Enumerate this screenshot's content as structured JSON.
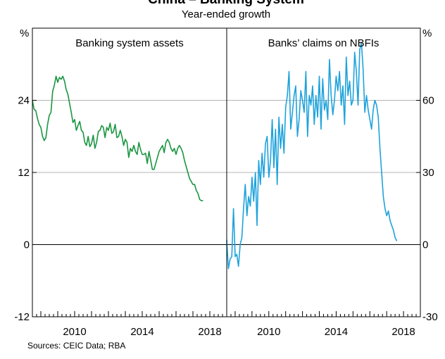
{
  "title": "China – Banking System",
  "subtitle": "Year-ended growth",
  "source": "Sources: CEIC Data; RBA",
  "colors": {
    "left_series": "#1a9641",
    "right_series": "#1fa2dc",
    "grid": "#b4b4b4",
    "axis": "#000000"
  },
  "chart_data": [
    {
      "type": "line",
      "panel": "left",
      "title": "Banking system assets",
      "ylabel": "%",
      "ylim": [
        -12,
        36
      ],
      "yticks": [
        "24",
        "12",
        "0",
        "-12"
      ],
      "ytick_values": [
        24,
        12,
        0,
        -12
      ],
      "xlim": [
        2007.5,
        2019.0
      ],
      "xticks": [
        "2010",
        "2014",
        "2018"
      ],
      "xtick_values": [
        2010,
        2014,
        2018
      ],
      "grid": true,
      "series": [
        {
          "x": [
            2007.5,
            2007.6,
            2007.7,
            2007.8,
            2007.9,
            2008.0,
            2008.1,
            2008.2,
            2008.3,
            2008.4,
            2008.5,
            2008.6,
            2008.7,
            2008.8,
            2008.9,
            2009.0,
            2009.1,
            2009.2,
            2009.3,
            2009.4,
            2009.5,
            2009.6,
            2009.7,
            2009.8,
            2009.9,
            2010.0,
            2010.1,
            2010.2,
            2010.3,
            2010.4,
            2010.5,
            2010.6,
            2010.7,
            2010.8,
            2010.9,
            2011.0,
            2011.1,
            2011.2,
            2011.3,
            2011.4,
            2011.5,
            2011.6,
            2011.7,
            2011.8,
            2011.9,
            2012.0,
            2012.1,
            2012.2,
            2012.3,
            2012.4,
            2012.5,
            2012.6,
            2012.7,
            2012.8,
            2012.9,
            2013.0,
            2013.1,
            2013.2,
            2013.3,
            2013.4,
            2013.5,
            2013.6,
            2013.7,
            2013.8,
            2013.9,
            2014.0,
            2014.1,
            2014.2,
            2014.3,
            2014.4,
            2014.5,
            2014.6,
            2014.7,
            2014.8,
            2014.9,
            2015.0,
            2015.1,
            2015.2,
            2015.3,
            2015.4,
            2015.5,
            2015.6,
            2015.7,
            2015.8,
            2015.9,
            2016.0,
            2016.1,
            2016.2,
            2016.3,
            2016.4,
            2016.5,
            2016.6,
            2016.7,
            2016.8,
            2016.9,
            2017.0,
            2017.1,
            2017.2,
            2017.3,
            2017.4,
            2017.5,
            2017.6
          ],
          "values": [
            24.0,
            22.5,
            22.3,
            21.0,
            20.0,
            19.5,
            18.0,
            17.3,
            17.8,
            20.0,
            21.5,
            22.0,
            25.5,
            26.5,
            28.0,
            27.0,
            27.8,
            27.5,
            28.0,
            27.2,
            25.8,
            25.0,
            23.5,
            22.0,
            20.3,
            20.8,
            19.0,
            19.8,
            20.5,
            19.0,
            18.7,
            17.0,
            16.5,
            18.0,
            16.3,
            16.8,
            18.2,
            16.0,
            17.0,
            18.8,
            19.0,
            19.8,
            19.5,
            17.8,
            19.5,
            19.0,
            20.2,
            18.5,
            18.8,
            20.0,
            17.8,
            18.0,
            19.0,
            18.0,
            16.5,
            17.5,
            17.0,
            14.5,
            16.0,
            15.5,
            16.5,
            15.5,
            15.0,
            17.0,
            15.8,
            15.0,
            15.0,
            15.2,
            13.5,
            15.5,
            14.0,
            12.5,
            12.5,
            13.5,
            14.5,
            15.5,
            16.0,
            16.5,
            15.3,
            17.0,
            17.5,
            17.0,
            16.0,
            15.5,
            16.0,
            15.0,
            16.0,
            16.5,
            16.0,
            15.3,
            14.0,
            13.0,
            12.0,
            11.0,
            10.5,
            10.0,
            10.0,
            9.0,
            8.5,
            7.5,
            7.3,
            7.3
          ]
        }
      ]
    },
    {
      "type": "line",
      "panel": "right",
      "title": "Banks’ claims on NBFIs",
      "ylabel": "%",
      "ylim": [
        -30,
        90
      ],
      "yticks": [
        "60",
        "30",
        "0",
        "-30"
      ],
      "ytick_values": [
        60,
        30,
        0,
        -30
      ],
      "xlim": [
        2007.5,
        2019.0
      ],
      "xticks": [
        "2010",
        "2014",
        "2018"
      ],
      "xtick_values": [
        2010,
        2014,
        2018
      ],
      "grid": true,
      "series": [
        {
          "x": [
            2007.5,
            2007.6,
            2007.7,
            2007.8,
            2007.9,
            2008.0,
            2008.1,
            2008.2,
            2008.3,
            2008.4,
            2008.5,
            2008.6,
            2008.7,
            2008.8,
            2008.9,
            2009.0,
            2009.1,
            2009.2,
            2009.3,
            2009.4,
            2009.5,
            2009.6,
            2009.7,
            2009.8,
            2009.9,
            2010.0,
            2010.1,
            2010.2,
            2010.3,
            2010.4,
            2010.5,
            2010.6,
            2010.7,
            2010.8,
            2010.9,
            2011.0,
            2011.1,
            2011.2,
            2011.3,
            2011.4,
            2011.5,
            2011.6,
            2011.7,
            2011.8,
            2011.9,
            2012.0,
            2012.1,
            2012.2,
            2012.3,
            2012.4,
            2012.5,
            2012.6,
            2012.7,
            2012.8,
            2012.9,
            2013.0,
            2013.1,
            2013.2,
            2013.3,
            2013.4,
            2013.5,
            2013.6,
            2013.7,
            2013.8,
            2013.9,
            2014.0,
            2014.1,
            2014.2,
            2014.3,
            2014.4,
            2014.5,
            2014.6,
            2014.7,
            2014.8,
            2014.9,
            2015.0,
            2015.1,
            2015.2,
            2015.3,
            2015.4,
            2015.5,
            2015.6,
            2015.7,
            2015.8,
            2015.9,
            2016.0,
            2016.1,
            2016.2,
            2016.3,
            2016.4,
            2016.5,
            2016.6,
            2016.7,
            2016.8,
            2016.9,
            2017.0,
            2017.1,
            2017.2,
            2017.3,
            2017.4,
            2017.5,
            2017.6
          ],
          "values": [
            2,
            -10,
            -6,
            -5,
            15,
            -5,
            -4,
            -9,
            0,
            3,
            15,
            25,
            12,
            20,
            16,
            28,
            18,
            30,
            8,
            35,
            25,
            38,
            28,
            42,
            45,
            28,
            35,
            52,
            32,
            48,
            25,
            53,
            40,
            50,
            38,
            57,
            62,
            72,
            48,
            55,
            62,
            66,
            45,
            52,
            64,
            60,
            55,
            72,
            45,
            62,
            58,
            66,
            50,
            62,
            53,
            70,
            48,
            69,
            56,
            60,
            52,
            77,
            62,
            54,
            60,
            70,
            64,
            72,
            58,
            66,
            50,
            78,
            62,
            68,
            58,
            60,
            80,
            72,
            58,
            81,
            84,
            73,
            55,
            62,
            56,
            52,
            48,
            56,
            60,
            58,
            53,
            40,
            30,
            20,
            15,
            12,
            14,
            10,
            8,
            6,
            3,
            1.5
          ]
        }
      ]
    }
  ]
}
